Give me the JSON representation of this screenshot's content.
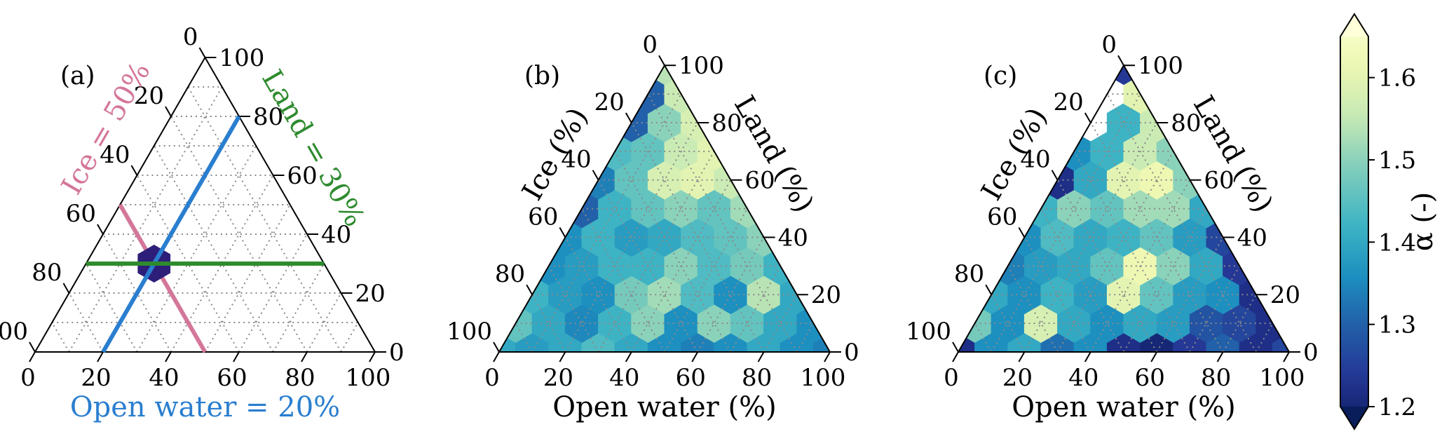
{
  "chart_data": [
    {
      "type": "ternary",
      "panel_label": "(a)",
      "axes": {
        "bottom": "",
        "left": "",
        "right": ""
      },
      "ticks": [
        0,
        20,
        40,
        60,
        80,
        100
      ],
      "lines": [
        {
          "label": "Ice = 50%",
          "component": "ice",
          "value": 50,
          "color": "#d4769a"
        },
        {
          "label": "Open water = 20%",
          "component": "water",
          "value": 20,
          "color": "#2a7ecf"
        },
        {
          "label": "Land = 30%",
          "component": "land",
          "value": 30,
          "color": "#2e8b2e"
        }
      ],
      "marker": {
        "water": 20,
        "ice": 50,
        "land": 30,
        "color": "#2d1e7a"
      }
    },
    {
      "type": "ternary-hexbin",
      "panel_label": "(b)",
      "axes": {
        "bottom": "Open water (%)",
        "left": "Ice (%)",
        "right": "Land (%)"
      },
      "ticks": [
        0,
        20,
        40,
        60,
        80,
        100
      ],
      "hex_values": [
        [
          1.4,
          1.38,
          1.4,
          1.44,
          1.4,
          1.36,
          1.34,
          1.36,
          1.4,
          1.36,
          1.34
        ],
        [
          1.46,
          1.4,
          1.35,
          1.42,
          1.5,
          1.36,
          1.5,
          1.46,
          1.4,
          1.36
        ],
        [
          1.42,
          1.38,
          1.36,
          1.48,
          1.52,
          1.44,
          1.36,
          1.54,
          1.4
        ],
        [
          1.36,
          1.38,
          1.42,
          1.42,
          1.5,
          1.44,
          1.48,
          1.42
        ],
        [
          1.36,
          1.42,
          1.38,
          1.4,
          1.44,
          1.46,
          1.5
        ],
        [
          1.3,
          1.42,
          1.46,
          1.5,
          1.46,
          1.52
        ],
        [
          1.34,
          1.46,
          1.58,
          1.6,
          1.56
        ],
        [
          1.44,
          1.46,
          1.56,
          1.6
        ],
        [
          1.3,
          1.5,
          1.58
        ],
        [
          1.3,
          1.56
        ],
        [
          1.54
        ]
      ]
    },
    {
      "type": "ternary-hexbin",
      "panel_label": "(c)",
      "axes": {
        "bottom": "Open water (%)",
        "left": "Ice (%)",
        "right": "Land (%)"
      },
      "ticks": [
        0,
        20,
        40,
        60,
        80,
        100
      ],
      "hex_values": [
        [
          1.22,
          1.36,
          1.4,
          1.32,
          1.36,
          1.22,
          1.2,
          1.24,
          1.3,
          1.22,
          1.26
        ],
        [
          1.48,
          1.36,
          1.58,
          1.4,
          1.36,
          1.4,
          1.38,
          1.28,
          1.26,
          1.22
        ],
        [
          1.4,
          1.36,
          1.42,
          1.38,
          1.6,
          1.46,
          1.38,
          1.36,
          1.22
        ],
        [
          1.34,
          1.38,
          1.4,
          1.46,
          1.62,
          1.5,
          1.4,
          1.24
        ],
        [
          1.36,
          1.44,
          1.4,
          1.42,
          1.46,
          1.38,
          1.26
        ],
        [
          1.42,
          1.5,
          1.46,
          1.52,
          1.52,
          1.4
        ],
        [
          1.22,
          1.4,
          1.6,
          1.62,
          1.5
        ],
        [
          1.36,
          1.42,
          1.56,
          1.5
        ],
        [
          null,
          1.42,
          1.56
        ],
        [
          null,
          1.6
        ],
        [
          1.24
        ]
      ]
    }
  ],
  "colorbar": {
    "label": "α (-)",
    "min": 1.2,
    "max": 1.65,
    "ticks": [
      "1.2",
      "1.3",
      "1.4",
      "1.5",
      "1.6"
    ],
    "tick_values": [
      1.2,
      1.3,
      1.4,
      1.5,
      1.6
    ],
    "extend": "both",
    "colormap": "YlGnBu"
  }
}
